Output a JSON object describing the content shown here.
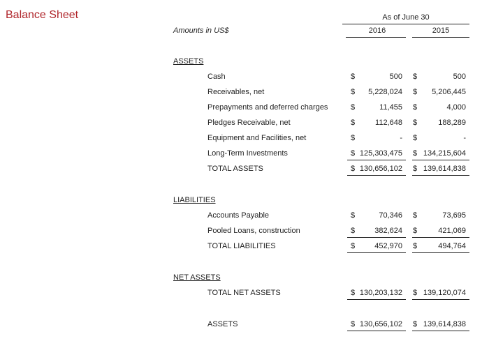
{
  "header": {
    "title": "Balance Sheet",
    "period": "As of June 30",
    "units": "Amounts in US$",
    "columns": [
      "2016",
      "2015"
    ]
  },
  "currency_symbol": "$",
  "sections": [
    {
      "heading": "ASSETS",
      "rows": [
        {
          "label": "Cash",
          "values": [
            "500",
            "500"
          ]
        },
        {
          "label": "Receivables, net",
          "values": [
            "5,228,024",
            "5,206,445"
          ]
        },
        {
          "label": "Prepayments and deferred charges",
          "values": [
            "11,455",
            "4,000"
          ]
        },
        {
          "label": "Pledges Receivable, net",
          "values": [
            "112,648",
            "188,289"
          ]
        },
        {
          "label": "Equipment and Facilities, net",
          "values": [
            "-",
            "-"
          ]
        },
        {
          "label": "Long-Term Investments",
          "values": [
            "125,303,475",
            "134,215,604"
          ]
        },
        {
          "label": "TOTAL ASSETS",
          "values": [
            "130,656,102",
            "139,614,838"
          ]
        }
      ]
    },
    {
      "heading": "LIABILITIES",
      "rows": [
        {
          "label": "Accounts Payable",
          "values": [
            "70,346",
            "73,695"
          ]
        },
        {
          "label": "Pooled Loans, construction",
          "values": [
            "382,624",
            "421,069"
          ]
        },
        {
          "label": "TOTAL LIABILITIES",
          "values": [
            "452,970",
            "494,764"
          ]
        }
      ]
    },
    {
      "heading": "NET ASSETS",
      "rows": [
        {
          "label": "TOTAL NET ASSETS",
          "values": [
            "130,203,132",
            "139,120,074"
          ]
        }
      ]
    },
    {
      "rows": [
        {
          "label": "ASSETS",
          "values": [
            "130,656,102",
            "139,614,838"
          ]
        }
      ]
    }
  ]
}
